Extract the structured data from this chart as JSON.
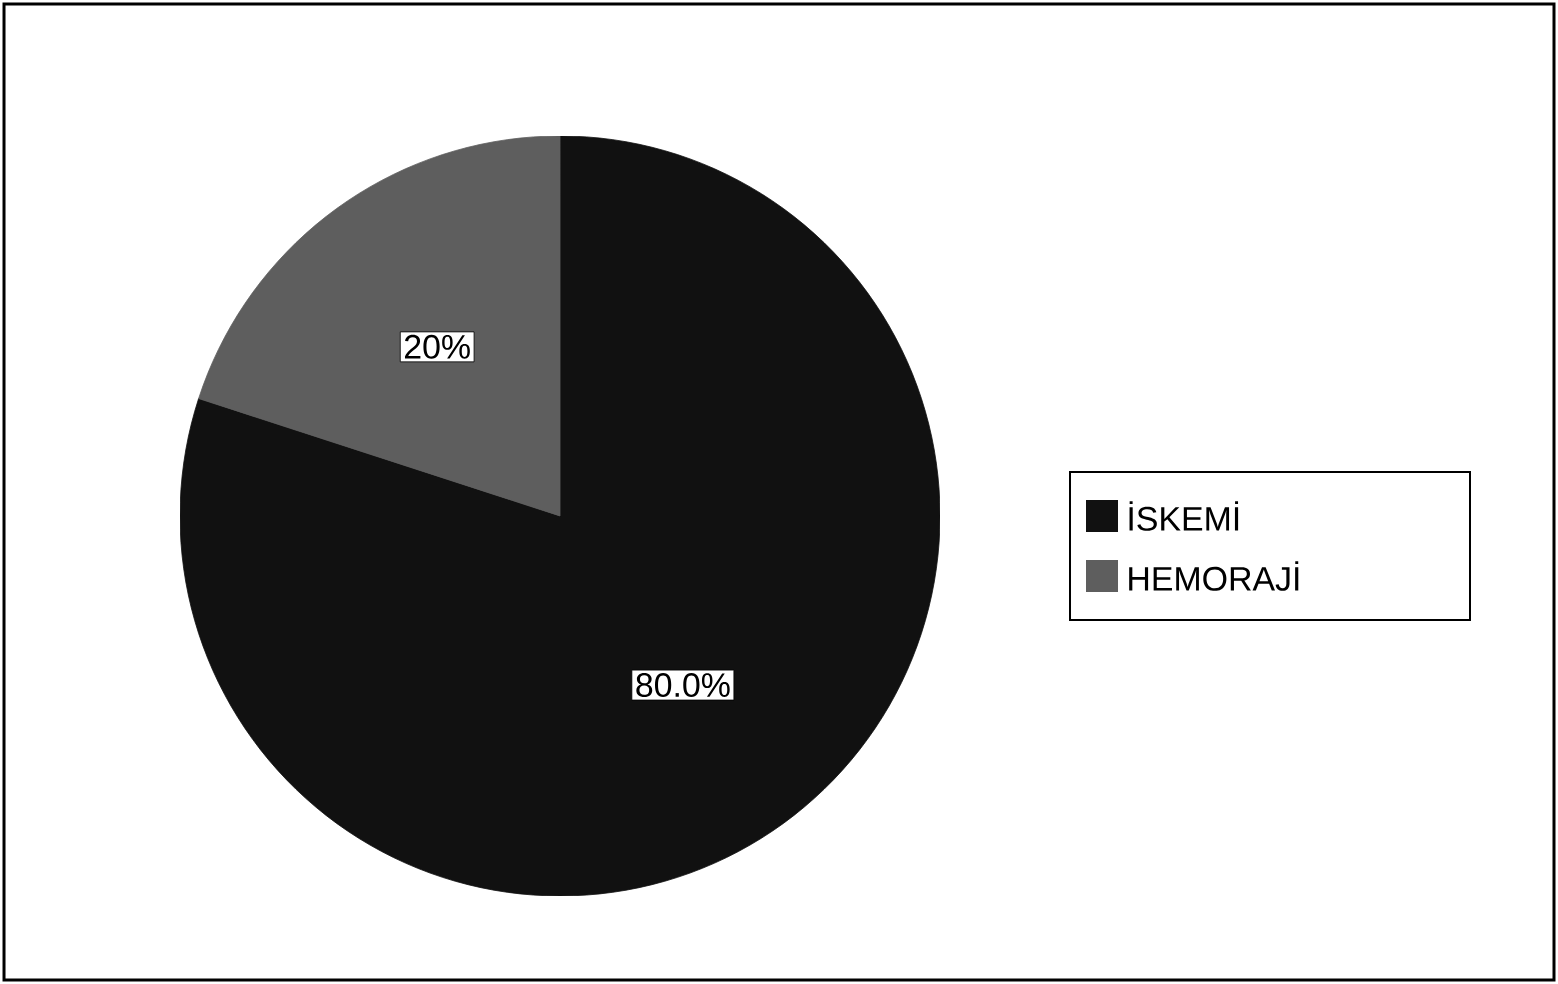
{
  "chart_data": {
    "type": "pie",
    "categories": [
      "İSKEMİ",
      "HEMORAJİ"
    ],
    "values": [
      80,
      20
    ],
    "colors": [
      "#111111",
      "#5e5e5e"
    ],
    "value_labels": [
      "80.0%",
      "20%"
    ],
    "legend": "right"
  }
}
